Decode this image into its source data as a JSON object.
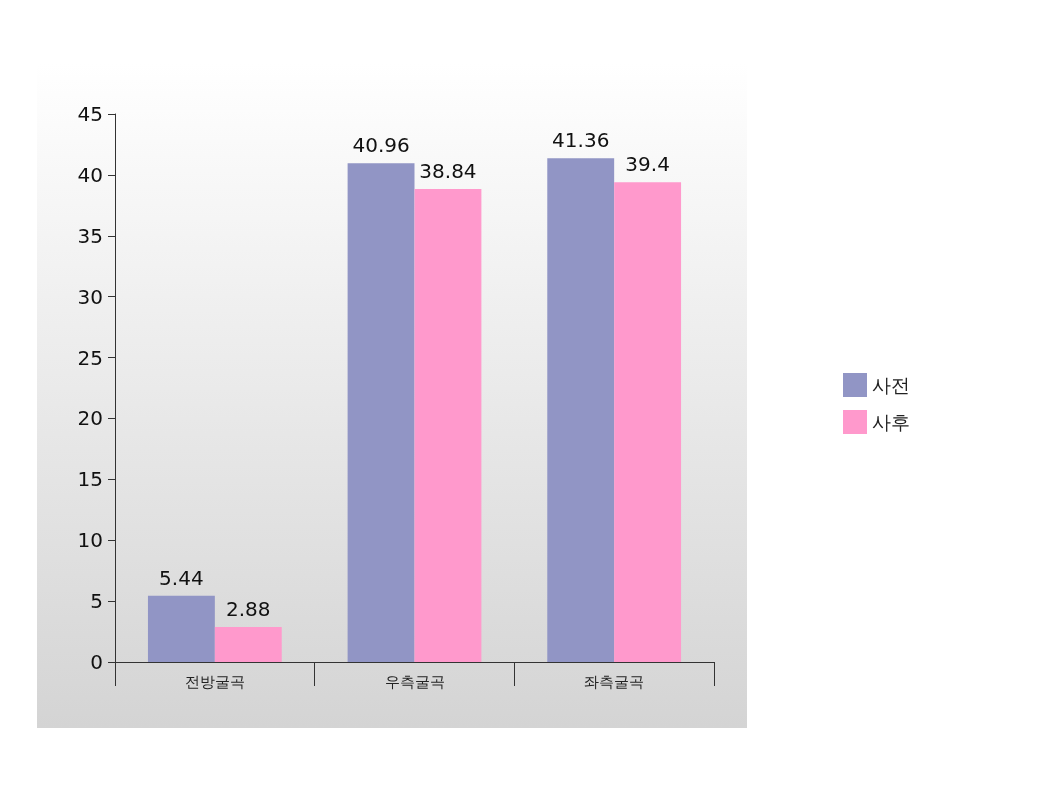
{
  "chart_data": {
    "type": "bar",
    "categories": [
      "전방굴곡",
      "우측굴곡",
      "좌측굴곡"
    ],
    "series": [
      {
        "name": "사전",
        "color": "#9195c5",
        "values": [
          5.44,
          40.96,
          41.36
        ]
      },
      {
        "name": "사후",
        "color": "#ff99cc",
        "values": [
          2.88,
          38.84,
          39.4
        ]
      }
    ],
    "ylim": [
      0,
      45
    ],
    "yticks": [
      0,
      5,
      10,
      15,
      20,
      25,
      30,
      35,
      40,
      45
    ],
    "data_labels": true,
    "grid": false,
    "legend": "right"
  }
}
